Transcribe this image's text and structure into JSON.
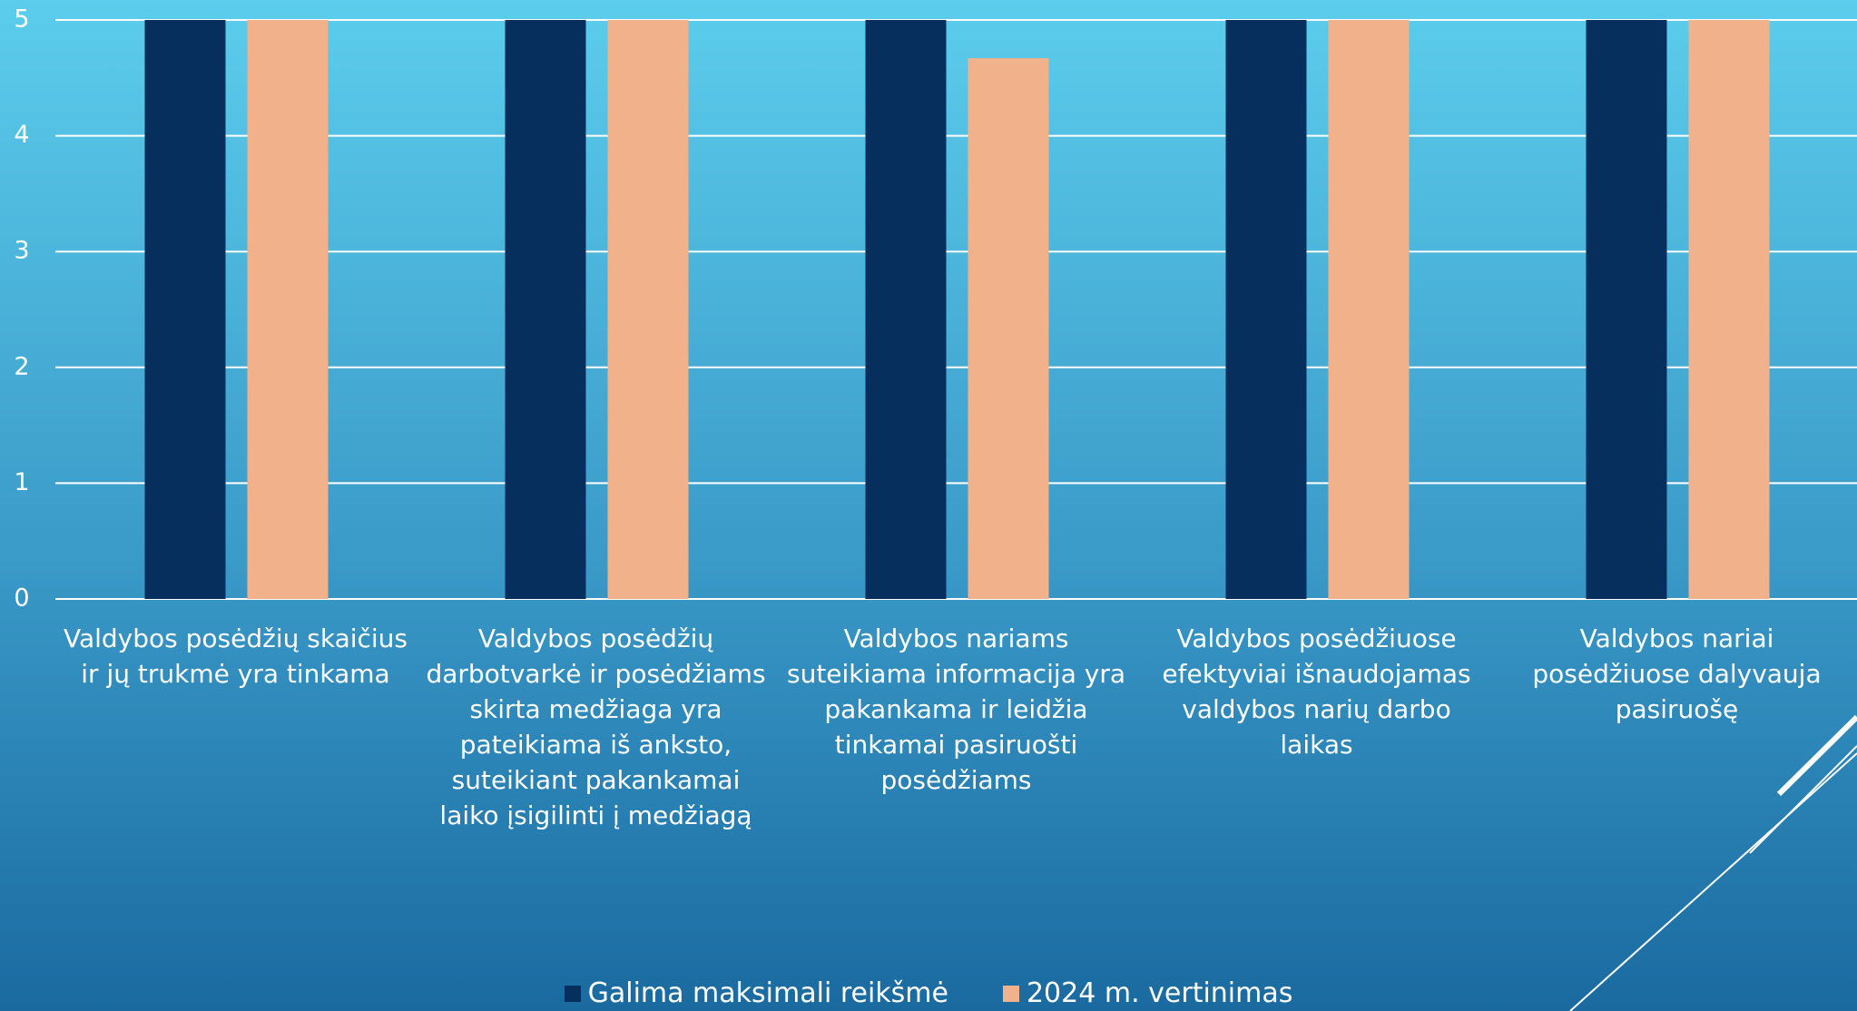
{
  "chart_data": {
    "type": "bar",
    "categories": [
      "Valdybos posėdžių skaičius ir jų trukmė yra tinkama",
      "Valdybos posėdžių darbotvarkė ir posėdžiams skirta medžiaga yra pateikiama iš anksto, suteikiant pakankamai laiko įsigilinti į medžiagą",
      "Valdybos nariams suteikiama informacija yra pakankama ir leidžia tinkamai pasiruošti posėdžiams",
      "Valdybos posėdžiuose efektyviai išnaudojamas valdybos narių darbo laikas",
      "Valdybos nariai posėdžiuose dalyvauja pasiruošę"
    ],
    "series": [
      {
        "name": "Galima maksimali reikšmė",
        "color": "#062f5e",
        "values": [
          5,
          5,
          5,
          5,
          5
        ]
      },
      {
        "name": "2024 m. vertinimas",
        "color": "#f1b18a",
        "values": [
          5,
          5,
          4.67,
          5,
          5
        ]
      }
    ],
    "ylim": [
      0,
      5
    ],
    "yticks": [
      0,
      1,
      2,
      3,
      4,
      5
    ],
    "grid": true,
    "legend": "bottom"
  }
}
